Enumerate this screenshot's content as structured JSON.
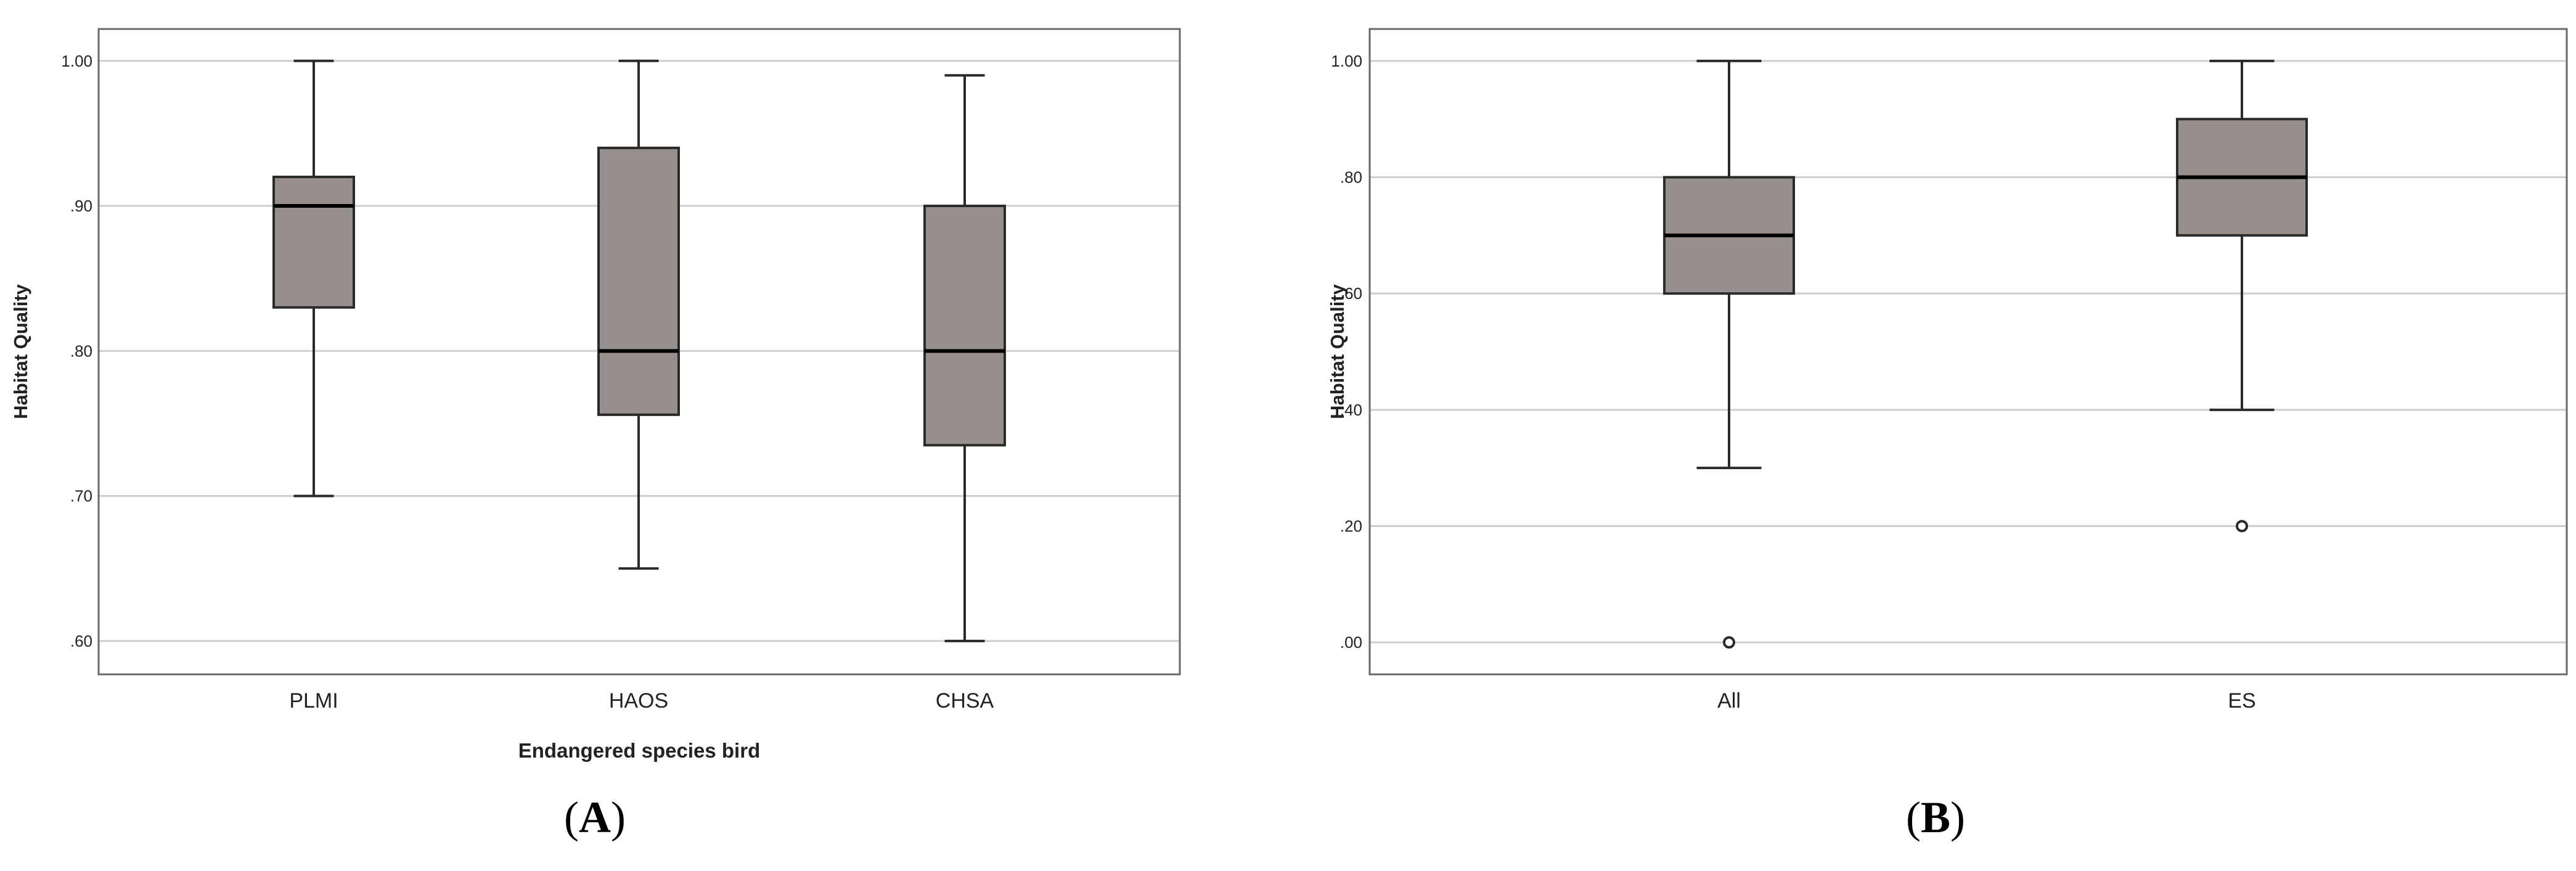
{
  "colors": {
    "box_fill": "#968f8b",
    "box_stroke": "#2a2a2a",
    "gridline": "#cfcfcf",
    "axis": "#6a6a6a",
    "median": "#000000",
    "text": "#222222"
  },
  "chart_data": [
    {
      "type": "box",
      "panel_label": "A",
      "xlabel": "Endangered species bird",
      "ylabel": "Habitat Quality",
      "ylim": [
        0.577,
        1.022
      ],
      "yticks": [
        0.6,
        0.7,
        0.8,
        0.9,
        1.0
      ],
      "ytick_labels": [
        ".60",
        ".70",
        ".80",
        ".90",
        "1.00"
      ],
      "grid": true,
      "categories": [
        "PLMI",
        "HAOS",
        "CHSA"
      ],
      "boxes": [
        {
          "category": "PLMI",
          "whisker_low": 0.7,
          "q1": 0.83,
          "median": 0.9,
          "q3": 0.92,
          "whisker_high": 1.0,
          "outliers": []
        },
        {
          "category": "HAOS",
          "whisker_low": 0.65,
          "q1": 0.756,
          "median": 0.8,
          "q3": 0.94,
          "whisker_high": 1.0,
          "outliers": []
        },
        {
          "category": "CHSA",
          "whisker_low": 0.6,
          "q1": 0.735,
          "median": 0.8,
          "q3": 0.9,
          "whisker_high": 0.99,
          "outliers": []
        }
      ]
    },
    {
      "type": "box",
      "panel_label": "B",
      "xlabel": "",
      "ylabel": "Habitat Quality",
      "ylim": [
        -0.055,
        1.055
      ],
      "yticks": [
        0.0,
        0.2,
        0.4,
        0.6,
        0.8,
        1.0
      ],
      "ytick_labels": [
        ".00",
        ".20",
        ".40",
        ".60",
        ".80",
        "1.00"
      ],
      "grid": true,
      "categories": [
        "All",
        "ES"
      ],
      "boxes": [
        {
          "category": "All",
          "whisker_low": 0.3,
          "q1": 0.6,
          "median": 0.7,
          "q3": 0.8,
          "whisker_high": 1.0,
          "outliers": [
            0.0
          ]
        },
        {
          "category": "ES",
          "whisker_low": 0.4,
          "q1": 0.7,
          "median": 0.8,
          "q3": 0.9,
          "whisker_high": 1.0,
          "outliers": [
            0.2
          ]
        }
      ]
    }
  ]
}
